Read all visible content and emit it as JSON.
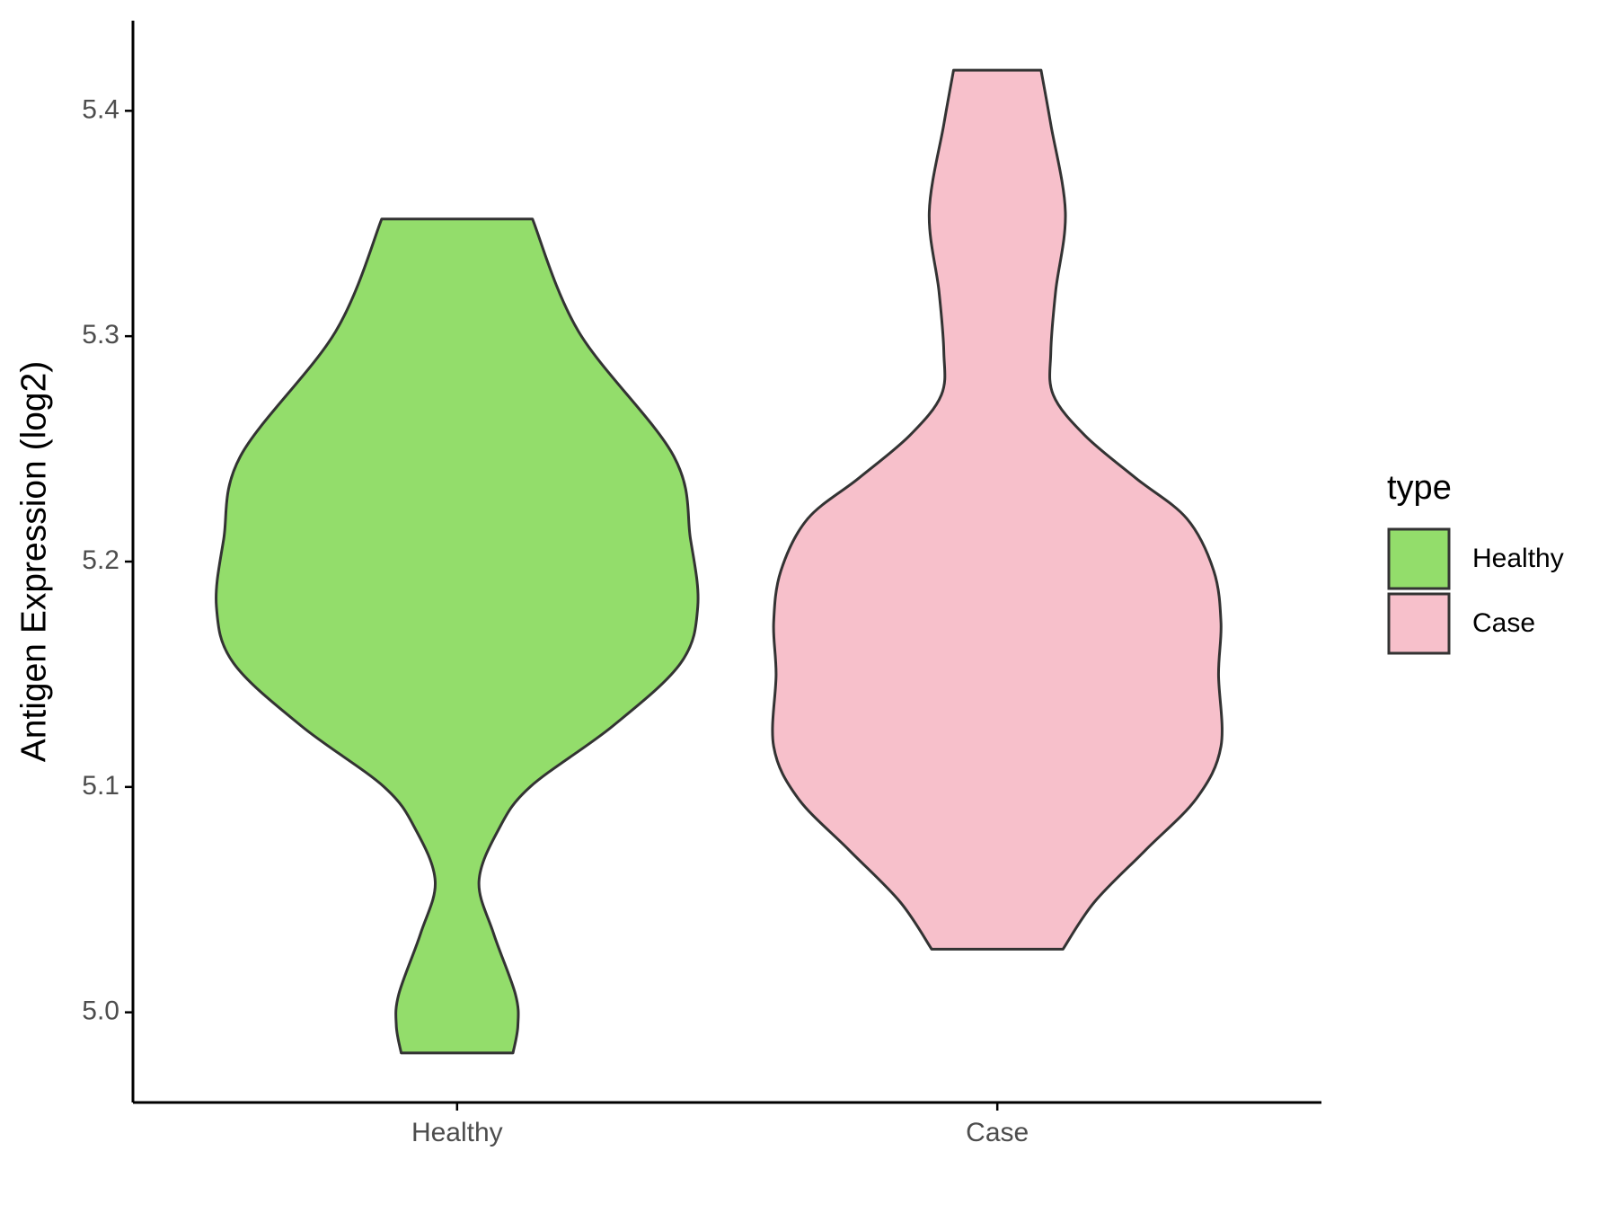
{
  "chart_data": {
    "type": "violin",
    "y_label": "Antigen Expression (log2)",
    "categories": [
      "Healthy",
      "Case"
    ],
    "legend_title": "type",
    "legend_position": "right",
    "ylim": [
      4.96,
      5.44
    ],
    "yticks": [
      {
        "value": 5.0,
        "label": "5.0"
      },
      5.1,
      5.2,
      5.3,
      5.4
    ],
    "series": [
      {
        "name": "Healthy",
        "color": "#93dd6b",
        "y": [
          5.352,
          5.302,
          5.247,
          5.21,
          5.18,
          5.155,
          5.127,
          5.1,
          5.081,
          5.058,
          5.035,
          5.008,
          4.994,
          4.982
        ],
        "widths": [
          0.31,
          0.5,
          0.89,
          0.96,
          0.99,
          0.92,
          0.64,
          0.3,
          0.17,
          0.09,
          0.15,
          0.24,
          0.25,
          0.23
        ]
      },
      {
        "name": "Case",
        "color": "#f7c0cb",
        "y": [
          5.418,
          5.394,
          5.355,
          5.32,
          5.293,
          5.274,
          5.256,
          5.237,
          5.219,
          5.196,
          5.173,
          5.15,
          5.118,
          5.095,
          5.072,
          5.049,
          5.028
        ],
        "widths": [
          0.18,
          0.22,
          0.28,
          0.24,
          0.22,
          0.23,
          0.36,
          0.57,
          0.78,
          0.89,
          0.92,
          0.91,
          0.92,
          0.82,
          0.61,
          0.4,
          0.27
        ]
      }
    ]
  }
}
